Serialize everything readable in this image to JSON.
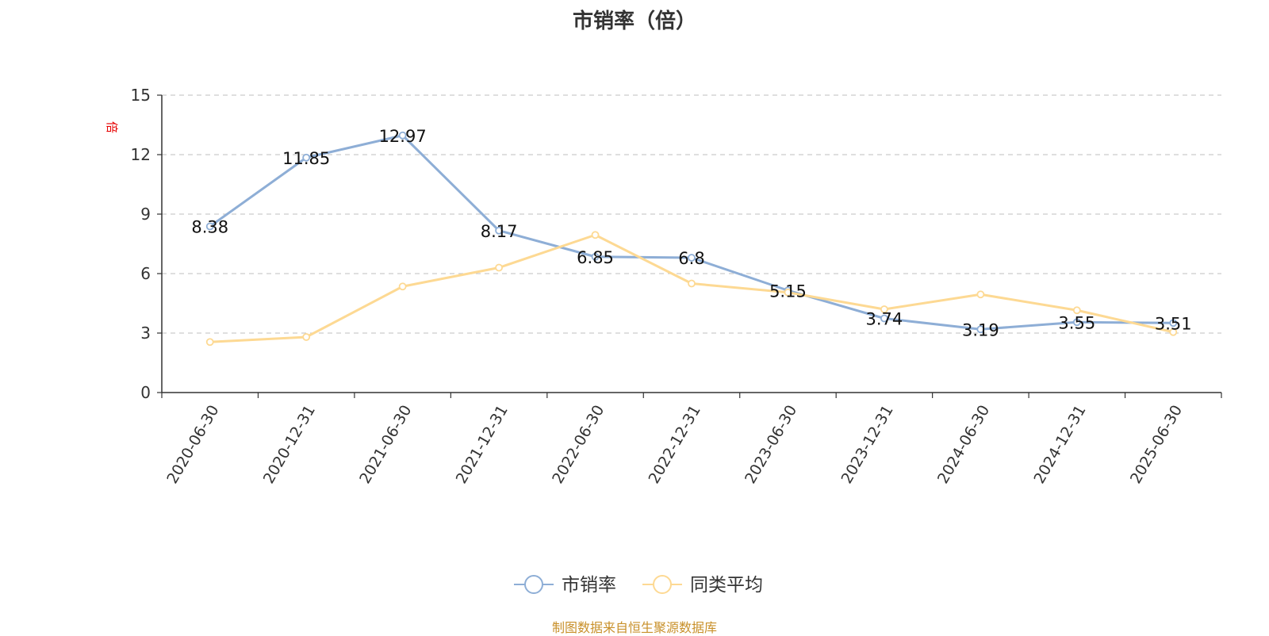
{
  "chart_data": {
    "type": "line",
    "title": "市销率（倍）",
    "unit_label": "倍",
    "categories": [
      "2020-06-30",
      "2020-12-31",
      "2021-06-30",
      "2021-12-31",
      "2022-06-30",
      "2022-12-31",
      "2023-06-30",
      "2023-12-31",
      "2024-06-30",
      "2024-12-31",
      "2025-06-30"
    ],
    "series": [
      {
        "name": "市销率",
        "color": "#8eaed6",
        "values": [
          8.38,
          11.85,
          12.97,
          8.17,
          6.85,
          6.8,
          5.15,
          3.74,
          3.19,
          3.55,
          3.51
        ],
        "labels": [
          "8.38",
          "11.85",
          "12.97",
          "8.17",
          "6.85",
          "6.8",
          "5.15",
          "3.74",
          "3.19",
          "3.55",
          "3.51"
        ]
      },
      {
        "name": "同类平均",
        "color": "#fdd993",
        "values": [
          2.55,
          2.8,
          5.35,
          6.3,
          7.95,
          5.5,
          5.05,
          4.2,
          4.95,
          4.15,
          3.05
        ]
      }
    ],
    "ylim": [
      0,
      15
    ],
    "yticks": [
      "0",
      "3",
      "6",
      "9",
      "12",
      "15"
    ],
    "grid": true,
    "legend": "bottom-center"
  },
  "footer": {
    "source": "制图数据来自恒生聚源数据库"
  }
}
